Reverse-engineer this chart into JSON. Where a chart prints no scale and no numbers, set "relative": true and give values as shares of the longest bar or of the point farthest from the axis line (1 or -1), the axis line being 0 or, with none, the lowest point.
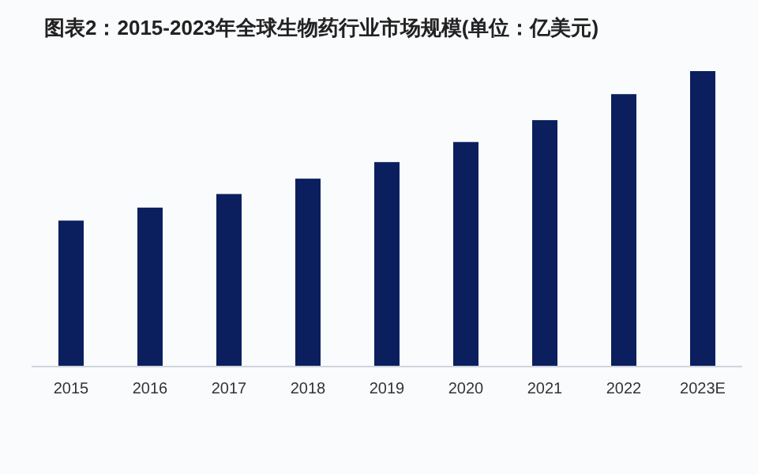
{
  "chart_data": {
    "type": "bar",
    "title": "图表2：2015-2023年全球生物药行业市场规模(单位：亿美元)",
    "categories": [
      "2015",
      "2016",
      "2017",
      "2018",
      "2019",
      "2020",
      "2021",
      "2022",
      "2023E"
    ],
    "values": [
      0.494,
      0.538,
      0.584,
      0.636,
      0.692,
      0.76,
      0.834,
      0.922,
      1
    ],
    "color": "#0b1f5e",
    "relative": true
  }
}
